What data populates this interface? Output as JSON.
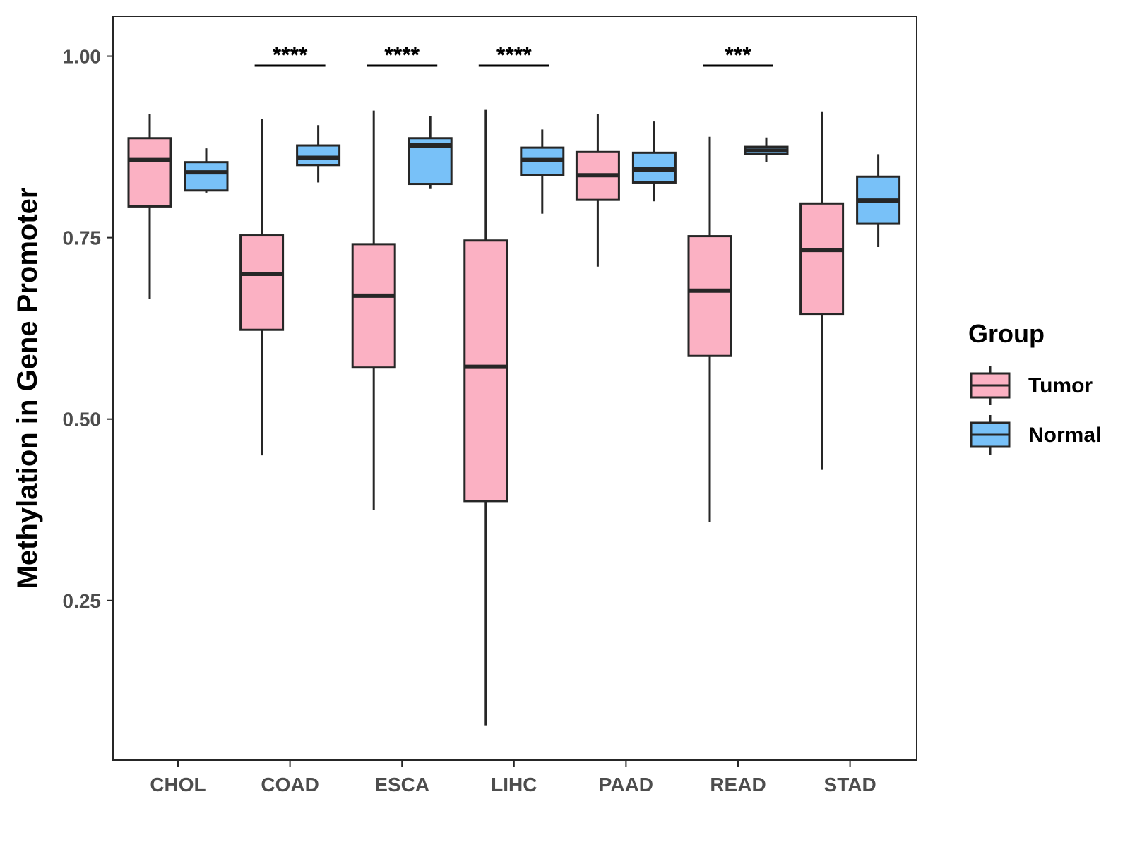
{
  "chart_data": {
    "type": "boxplot",
    "ylabel": "Methylation in Gene Promoter",
    "xlabel": "",
    "ylim": [
      0.03,
      1.055
    ],
    "y_ticks": [
      {
        "value": 0.25,
        "label": "0.25"
      },
      {
        "value": 0.5,
        "label": "0.50"
      },
      {
        "value": 0.75,
        "label": "0.75"
      },
      {
        "value": 1.0,
        "label": "1.00"
      }
    ],
    "categories": [
      "CHOL",
      "COAD",
      "ESCA",
      "LIHC",
      "PAAD",
      "READ",
      "STAD"
    ],
    "legend": {
      "title": "Group",
      "position": "right",
      "entries": [
        {
          "name": "Tumor",
          "color": "#fbb1c3"
        },
        {
          "name": "Normal",
          "color": "#78c1f8"
        }
      ]
    },
    "series": [
      {
        "name": "Tumor",
        "color": "#fbb1c3",
        "boxes": [
          {
            "min": 0.665,
            "q1": 0.793,
            "median": 0.857,
            "q3": 0.887,
            "max": 0.92
          },
          {
            "min": 0.45,
            "q1": 0.623,
            "median": 0.7,
            "q3": 0.753,
            "max": 0.913
          },
          {
            "min": 0.375,
            "q1": 0.571,
            "median": 0.67,
            "q3": 0.741,
            "max": 0.925
          },
          {
            "min": 0.078,
            "q1": 0.387,
            "median": 0.572,
            "q3": 0.746,
            "max": 0.926
          },
          {
            "min": 0.71,
            "q1": 0.802,
            "median": 0.836,
            "q3": 0.868,
            "max": 0.92
          },
          {
            "min": 0.358,
            "q1": 0.587,
            "median": 0.677,
            "q3": 0.752,
            "max": 0.889
          },
          {
            "min": 0.43,
            "q1": 0.645,
            "median": 0.733,
            "q3": 0.797,
            "max": 0.924
          }
        ]
      },
      {
        "name": "Normal",
        "color": "#78c1f8",
        "boxes": [
          {
            "min": 0.812,
            "q1": 0.815,
            "median": 0.84,
            "q3": 0.854,
            "max": 0.873
          },
          {
            "min": 0.826,
            "q1": 0.85,
            "median": 0.86,
            "q3": 0.877,
            "max": 0.905
          },
          {
            "min": 0.817,
            "q1": 0.824,
            "median": 0.877,
            "q3": 0.887,
            "max": 0.917
          },
          {
            "min": 0.783,
            "q1": 0.836,
            "median": 0.857,
            "q3": 0.874,
            "max": 0.899
          },
          {
            "min": 0.8,
            "q1": 0.826,
            "median": 0.844,
            "q3": 0.867,
            "max": 0.91
          },
          {
            "min": 0.854,
            "q1": 0.865,
            "median": 0.87,
            "q3": 0.875,
            "max": 0.888
          },
          {
            "min": 0.737,
            "q1": 0.769,
            "median": 0.801,
            "q3": 0.834,
            "max": 0.865
          }
        ]
      }
    ],
    "significance": [
      {
        "category": "CHOL",
        "label": ""
      },
      {
        "category": "COAD",
        "label": "****"
      },
      {
        "category": "ESCA",
        "label": "****"
      },
      {
        "category": "LIHC",
        "label": "****"
      },
      {
        "category": "PAAD",
        "label": ""
      },
      {
        "category": "READ",
        "label": "***"
      },
      {
        "category": "STAD",
        "label": ""
      }
    ],
    "grid": false
  }
}
